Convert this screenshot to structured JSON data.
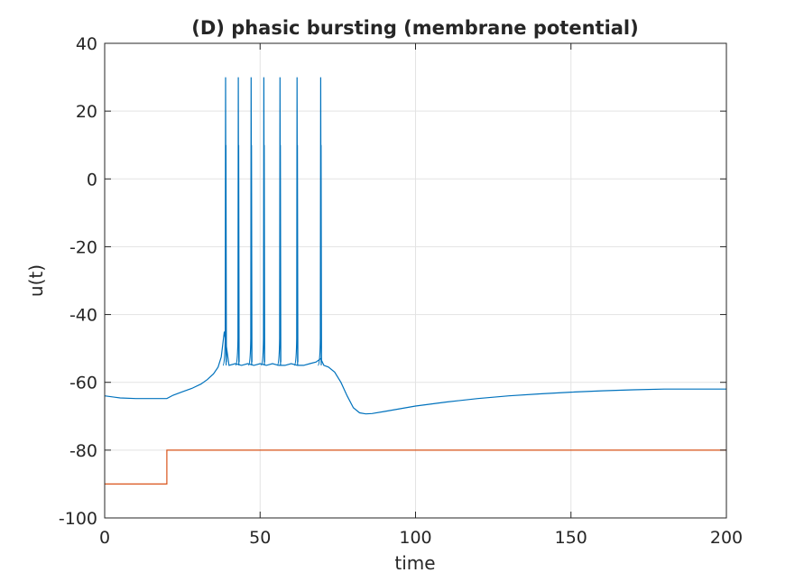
{
  "chart_data": {
    "type": "line",
    "title": "(D) phasic bursting (membrane potential)",
    "xlabel": "time",
    "ylabel": "u(t)",
    "xlim": [
      0,
      200
    ],
    "ylim": [
      -100,
      40
    ],
    "xticks": [
      0,
      50,
      100,
      150,
      200
    ],
    "yticks": [
      -100,
      -80,
      -60,
      -40,
      -20,
      0,
      20,
      40
    ],
    "grid": true,
    "spike_times": [
      38.9,
      43.0,
      47.1,
      51.2,
      56.4,
      61.9,
      69.5
    ],
    "series": [
      {
        "color": "#0072BD",
        "x": [
          0,
          5,
          10,
          15,
          20,
          22,
          25,
          28,
          31,
          33,
          35,
          36.5,
          37.5,
          38.5,
          40,
          42,
          44,
          46,
          48,
          50,
          52,
          54,
          56,
          58,
          60,
          62,
          64,
          66,
          68,
          69.5,
          70.5,
          72,
          74,
          76,
          78,
          80,
          82,
          84,
          86,
          90,
          95,
          100,
          110,
          120,
          130,
          140,
          150,
          160,
          170,
          180,
          190,
          200
        ],
        "y": [
          -64,
          -64.6,
          -64.8,
          -64.8,
          -64.8,
          -63.8,
          -62.8,
          -61.8,
          -60.5,
          -59.2,
          -57.5,
          -55.5,
          -52.5,
          -45,
          -55,
          -54.5,
          -55,
          -54.5,
          -55,
          -54.5,
          -55,
          -54.5,
          -55,
          -55,
          -54.5,
          -55,
          -55,
          -54.5,
          -54,
          -53,
          -55,
          -55.5,
          -57,
          -60,
          -64,
          -67.5,
          -69,
          -69.3,
          -69.2,
          -68.6,
          -67.8,
          -67.0,
          -65.8,
          -64.8,
          -64.0,
          -63.4,
          -62.9,
          -62.5,
          -62.2,
          -62.0,
          -62.0,
          -62.0
        ]
      },
      {
        "color": "#D95319",
        "x": [
          0,
          20,
          20,
          200
        ],
        "y": [
          -90,
          -90,
          -80,
          -80
        ]
      }
    ]
  }
}
